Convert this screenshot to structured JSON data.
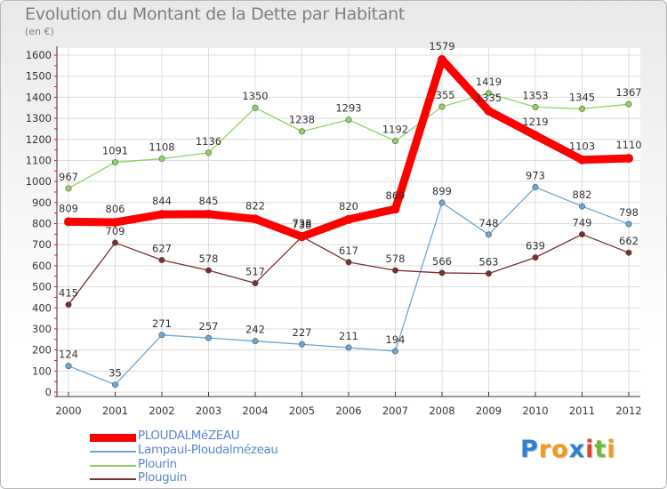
{
  "chart_data": {
    "type": "line",
    "title": "Evolution du Montant de la Dette par Habitant",
    "subtitle": "(en €)",
    "x": [
      "2000",
      "2001",
      "2002",
      "2003",
      "2004",
      "2005",
      "2006",
      "2007",
      "2008",
      "2009",
      "2010",
      "2011",
      "2012"
    ],
    "ylim": [
      0,
      1600
    ],
    "yticks": [
      "0",
      "100",
      "200",
      "300",
      "400",
      "500",
      "600",
      "700",
      "800",
      "900",
      "1000",
      "1100",
      "1200",
      "1300",
      "1400",
      "1500",
      "1600"
    ],
    "grid": true,
    "legend_position": "bottom-left",
    "series": [
      {
        "name": "Plourin",
        "color": "#8fd462",
        "values": [
          967,
          1091,
          1108,
          1136,
          1350,
          1238,
          1293,
          1192,
          1355,
          1419,
          1353,
          1345,
          1367
        ]
      },
      {
        "name": "Lampaul-Ploudalmézeau",
        "color": "#6ba6d8",
        "values": [
          124,
          35,
          271,
          257,
          242,
          227,
          211,
          194,
          899,
          748,
          973,
          882,
          798
        ]
      },
      {
        "name": "Plouguin",
        "color": "#7a2e2e",
        "values": [
          415,
          709,
          627,
          578,
          517,
          738,
          617,
          578,
          566,
          563,
          639,
          749,
          662
        ]
      },
      {
        "name": "PLOUDALMéZEAU",
        "color": "#ff0000",
        "values": [
          809,
          806,
          844,
          845,
          822,
          738,
          820,
          869,
          1579,
          1335,
          1219,
          1103,
          1110
        ]
      }
    ]
  },
  "legend": [
    "PLOUDALMéZEAU",
    "Lampaul-Ploudalmézeau",
    "Plourin",
    "Plouguin"
  ],
  "brand": {
    "letters": [
      "P",
      "r",
      "o",
      "x",
      "i",
      "t",
      "i"
    ],
    "colors": [
      "#2b7fd4",
      "#f39a1a",
      "#f39a1a",
      "#2b7fd4",
      "#e8402a",
      "#6dbb2c",
      "#f39a1a"
    ]
  }
}
